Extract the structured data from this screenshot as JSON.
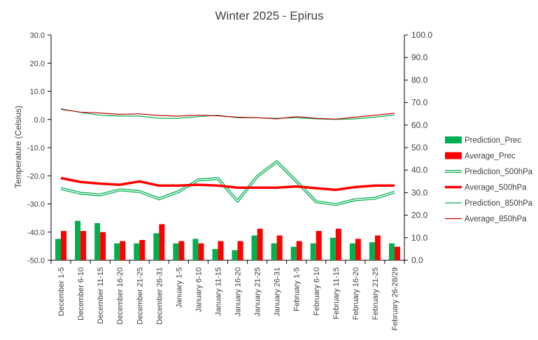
{
  "chart_data": {
    "type": "combo",
    "title": "Winter 2025 - Epirus",
    "ylabel_left": "Temperature (Celsius)",
    "ylim_left": [
      -50,
      30
    ],
    "yticks_left": [
      "30.0",
      "20.0",
      "10.0",
      "0.0",
      "-10.0",
      "-20.0",
      "-30.0",
      "-40.0",
      "-50.0"
    ],
    "ylim_right": [
      0,
      100
    ],
    "yticks_right": [
      "100.0",
      "90.0",
      "80.0",
      "70.0",
      "60.0",
      "50.0",
      "40.0",
      "30.0",
      "20.0",
      "10.0",
      "0.0"
    ],
    "categories": [
      "December 1-5",
      "December 6-10",
      "December 11-15",
      "December 16-20",
      "December 21-25",
      "December 26-31",
      "January 1-5",
      "January 6-10",
      "January 11-15",
      "January 16-20",
      "January 21-25",
      "January 26-31",
      "February 1-5",
      "February 6-10",
      "February 11-15",
      "February 16-20",
      "February 21-25",
      "February 26-28/29"
    ],
    "bar_series": [
      {
        "name": "Prediction_Prec",
        "color": "#00b050",
        "axis": "right",
        "values": [
          9.5,
          17.5,
          16.5,
          7.5,
          7.5,
          12,
          7.5,
          9.5,
          5,
          4.5,
          11,
          7.5,
          6,
          7.5,
          10,
          7.5,
          8,
          7.5
        ]
      },
      {
        "name": "Average_Prec",
        "color": "#ff0000",
        "axis": "right",
        "values": [
          13,
          13,
          12.5,
          8.5,
          9,
          16,
          8.5,
          7.5,
          8.5,
          8.5,
          14,
          11,
          8.5,
          13,
          14,
          9.5,
          11,
          6
        ]
      }
    ],
    "line_series": [
      {
        "name": "Prediction_500hPa",
        "color": "#00b050",
        "style": "double",
        "axis": "left",
        "values": [
          -24.5,
          -26.2,
          -26.8,
          -25.0,
          -25.6,
          -28.2,
          -25.6,
          -21.5,
          -21.0,
          -29.0,
          -20.2,
          -15.0,
          -22.0,
          -29.2,
          -30.2,
          -28.5,
          -28.0,
          -25.8
        ]
      },
      {
        "name": "Average_500hPa",
        "color": "#ff0000",
        "style": "thick",
        "axis": "left",
        "values": [
          -20.8,
          -22.2,
          -22.8,
          -23.2,
          -22.0,
          -23.5,
          -23.5,
          -23.2,
          -23.5,
          -24.2,
          -24.2,
          -24.2,
          -23.8,
          -24.4,
          -25.0,
          -24.0,
          -23.5,
          -23.5
        ]
      },
      {
        "name": "Prediction_850hPa",
        "color": "#00b050",
        "style": "thin",
        "axis": "left",
        "values": [
          3.8,
          2.5,
          1.5,
          1.2,
          1.2,
          0.4,
          0.4,
          1.0,
          1.5,
          0.6,
          0.6,
          0.4,
          0.6,
          0.2,
          0,
          0.2,
          0.8,
          1.6
        ]
      },
      {
        "name": "Average_850hPa",
        "color": "#c00000",
        "style": "thin",
        "axis": "left",
        "values": [
          3.6,
          2.6,
          2.3,
          1.8,
          2.0,
          1.4,
          1.2,
          1.5,
          1.3,
          0.8,
          0.6,
          0.2,
          1.0,
          0.4,
          0.1,
          0.8,
          1.5,
          2.2
        ]
      }
    ],
    "legend_position": "right",
    "grid": false
  }
}
